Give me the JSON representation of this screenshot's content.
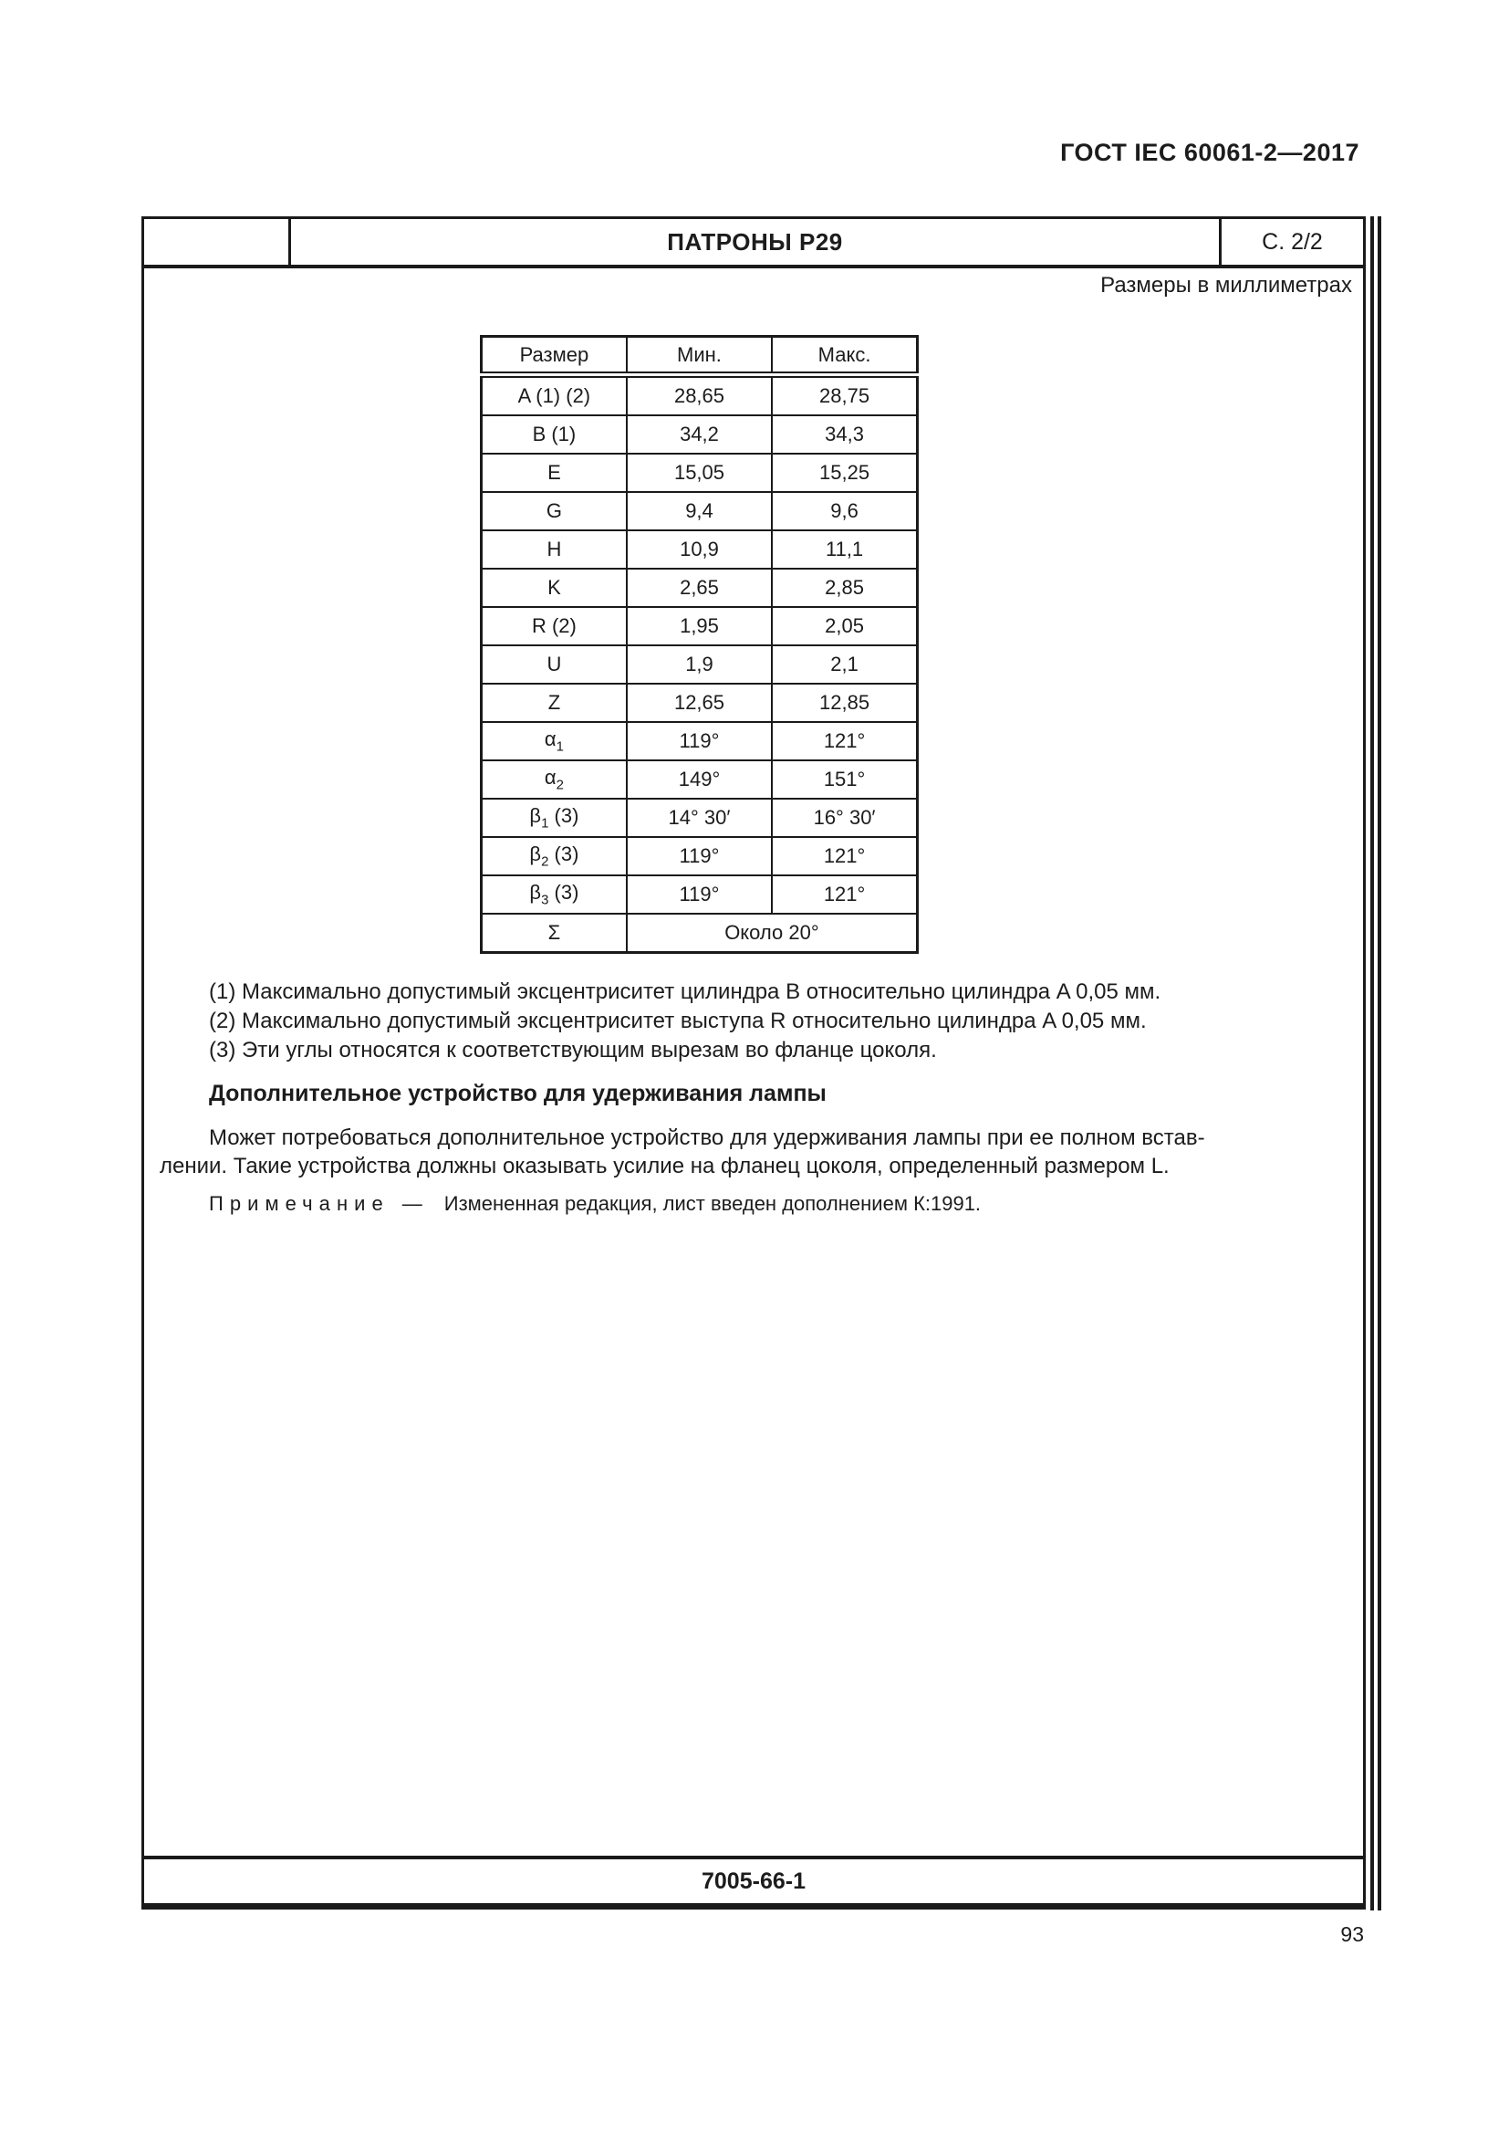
{
  "header": {
    "standard_ref": "ГОСТ IEC 60061-2—2017"
  },
  "sheet": {
    "title": "ПАТРОНЫ Р29",
    "page_ref": "С. 2/2",
    "units_note": "Размеры в миллиметрах",
    "sheet_number": "7005-66-1"
  },
  "table": {
    "headers": [
      "Размер",
      "Мин.",
      "Макс."
    ],
    "rows": [
      {
        "size": "A (1) (2)",
        "min": "28,65",
        "max": "28,75"
      },
      {
        "size": "B (1)",
        "min": "34,2",
        "max": "34,3"
      },
      {
        "size": "E",
        "min": "15,05",
        "max": "15,25"
      },
      {
        "size": "G",
        "min": "9,4",
        "max": "9,6"
      },
      {
        "size": "H",
        "min": "10,9",
        "max": "11,1"
      },
      {
        "size": "K",
        "min": "2,65",
        "max": "2,85"
      },
      {
        "size": "R (2)",
        "min": "1,95",
        "max": "2,05"
      },
      {
        "size": "U",
        "min": "1,9",
        "max": "2,1"
      },
      {
        "size": "Z",
        "min": "12,65",
        "max": "12,85"
      },
      {
        "size": {
          "base": "α",
          "sub": "1"
        },
        "min": "119°",
        "max": "121°"
      },
      {
        "size": {
          "base": "α",
          "sub": "2"
        },
        "min": "149°",
        "max": "151°"
      },
      {
        "size": {
          "base": "β",
          "sub": "1",
          "suffix": " (3)"
        },
        "min": "14° 30′",
        "max": "16° 30′"
      },
      {
        "size": {
          "base": "β",
          "sub": "2",
          "suffix": " (3)"
        },
        "min": "119°",
        "max": "121°"
      },
      {
        "size": {
          "base": "β",
          "sub": "3",
          "suffix": " (3)"
        },
        "min": "119°",
        "max": "121°"
      },
      {
        "size": {
          "base": "Σ"
        },
        "span": "Около 20°"
      }
    ]
  },
  "notes": [
    "(1) Максимально допустимый эксцентриситет цилиндра B относительно цилиндра A 0,05 мм.",
    "(2) Максимально допустимый эксцентриситет выступа R относительно цилиндра A 0,05 мм.",
    "(3) Эти углы относятся к соответствующим вырезам во фланце цоколя."
  ],
  "sections": {
    "holding_device": {
      "heading": "Дополнительное устройство для удерживания лампы",
      "body_lines": [
        "Может потребоваться дополнительное устройство для удерживания лампы при ее полном встав-",
        "лении. Такие устройства должны оказывать усилие на фланец цоколя, определенный размером L."
      ]
    }
  },
  "remark": {
    "label": "Примечание",
    "dash": "—",
    "text": "Измененная редакция, лист введен дополнением К:1991."
  },
  "footer": {
    "page_number": "93"
  }
}
